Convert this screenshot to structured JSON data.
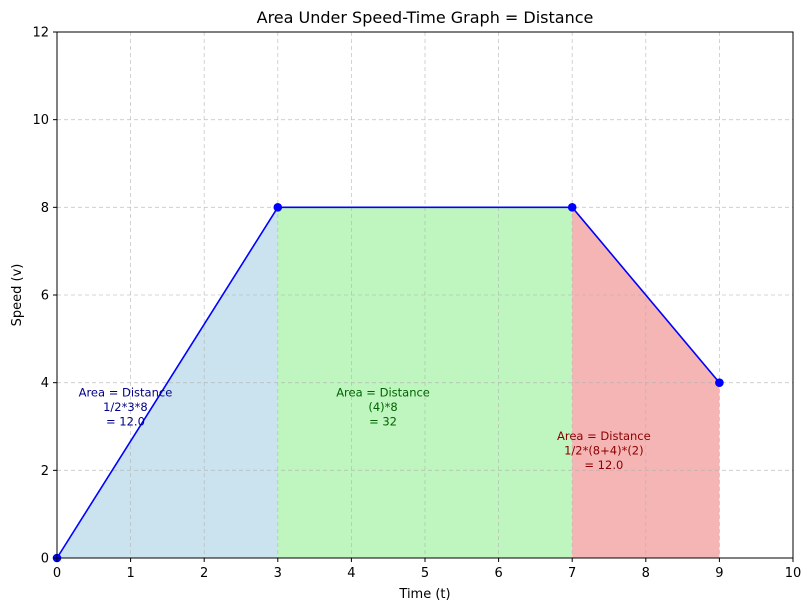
{
  "chart_data": {
    "type": "area",
    "title": "Area Under Speed-Time Graph = Distance",
    "xlabel": "Time (t)",
    "ylabel": "Speed (v)",
    "xlim": [
      0,
      10
    ],
    "ylim": [
      0,
      12
    ],
    "xticks": [
      "0",
      "1",
      "2",
      "3",
      "4",
      "5",
      "6",
      "7",
      "8",
      "9",
      "10"
    ],
    "yticks": [
      "0",
      "2",
      "4",
      "6",
      "8",
      "10",
      "12"
    ],
    "grid": true,
    "series": [
      {
        "x": [
          0,
          3,
          7,
          9
        ],
        "y": [
          0,
          8,
          8,
          4
        ],
        "color": "#0000ff"
      }
    ],
    "regions": [
      {
        "x": [
          0,
          3
        ],
        "y": [
          0,
          8
        ],
        "color": "#a6cee3",
        "label_lines": [
          "Area = Distance",
          "1/2*3*8",
          "= 12.0"
        ],
        "label_color": "#00008b",
        "label_x": 0.93,
        "label_y": 3.45
      },
      {
        "x": [
          3,
          7
        ],
        "y": [
          8,
          8
        ],
        "color": "#90ee90",
        "label_lines": [
          "Area = Distance",
          "(4)*8",
          "= 32"
        ],
        "label_color": "#006400",
        "label_x": 4.43,
        "label_y": 3.45
      },
      {
        "x": [
          7,
          9
        ],
        "y": [
          8,
          4
        ],
        "color": "#f08080",
        "label_lines": [
          "Area = Distance",
          "1/2*(8+4)*(2)",
          "= 12.0"
        ],
        "label_color": "#8b0000",
        "label_x": 7.43,
        "label_y": 2.45
      }
    ]
  }
}
